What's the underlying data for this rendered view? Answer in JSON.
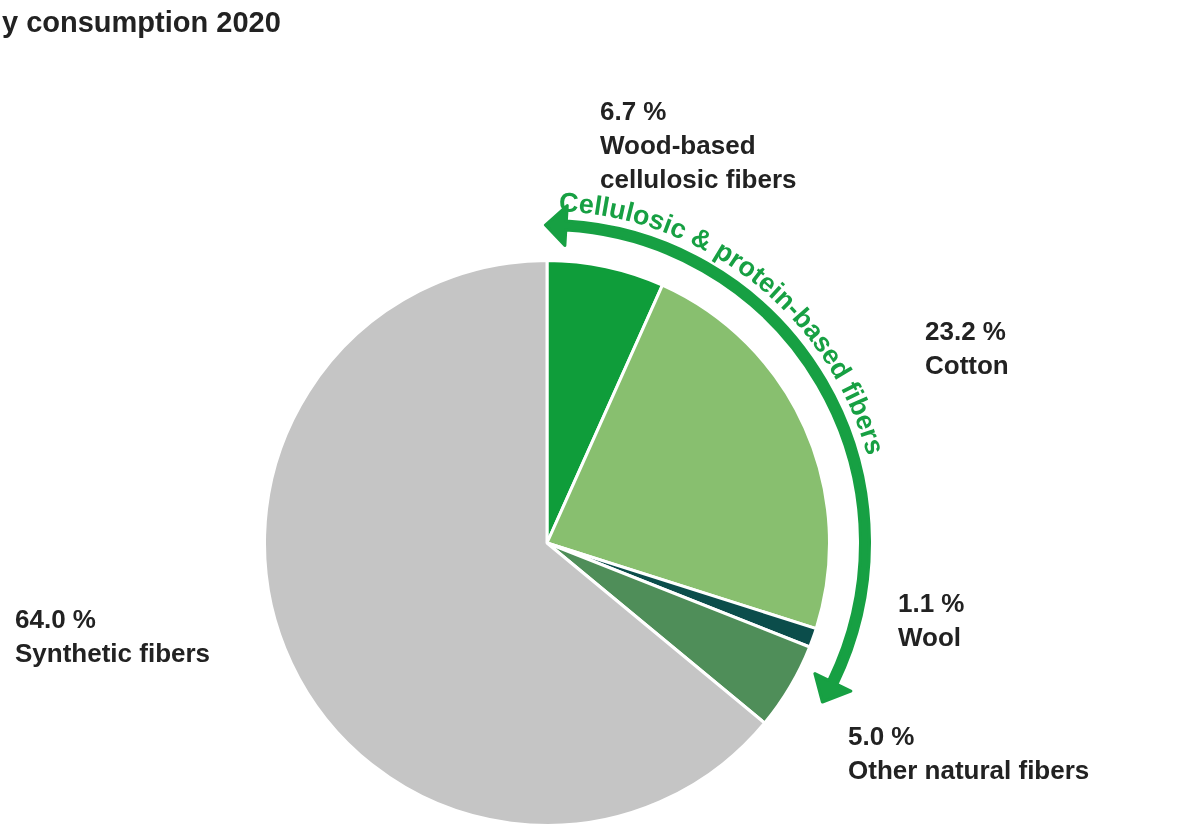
{
  "chart_data": {
    "type": "pie",
    "title": "y consumption 2020",
    "categories": [
      "Wood-based cellulosic fibers",
      "Cotton",
      "Wool",
      "Other natural fibers",
      "Synthetic fibers"
    ],
    "values": [
      6.7,
      23.2,
      1.1,
      5.0,
      64.0
    ],
    "value_labels": [
      "6.7 %",
      "23.2 %",
      "1.1 %",
      "5.0 %",
      "64.0 %"
    ],
    "colors": [
      "#0f9d3a",
      "#88bf6f",
      "#0b4d4b",
      "#4f8e59",
      "#c5c5c5"
    ],
    "annotations": [
      "Cellulosic & protein-based fibers"
    ]
  }
}
